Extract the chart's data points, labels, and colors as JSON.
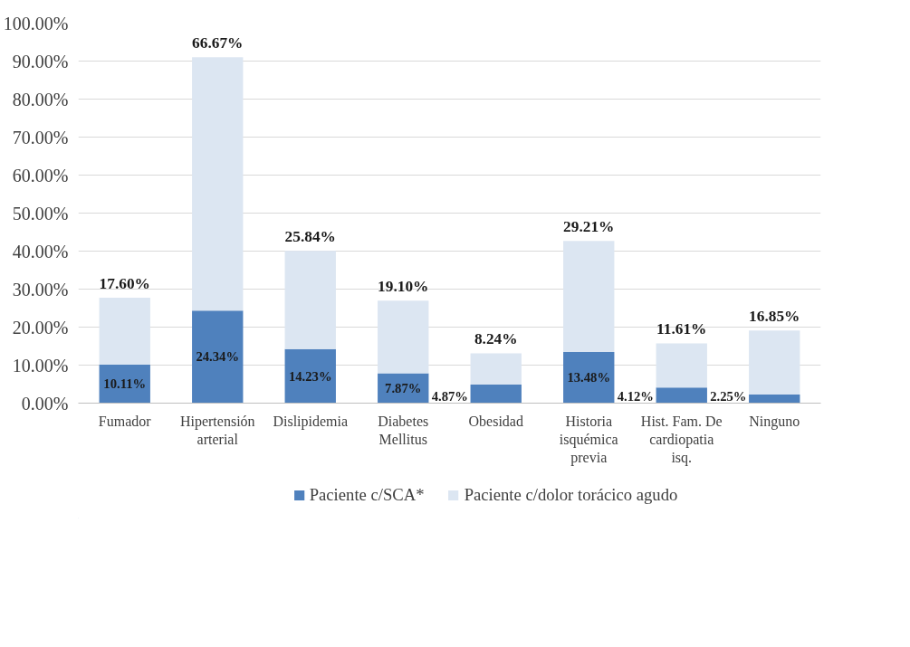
{
  "chart_data": {
    "type": "bar",
    "stacked": true,
    "categories": [
      "Fumador",
      "Hipertensión arterial",
      "Dislipidemia",
      "Diabetes Mellitus",
      "Obesidad",
      "Historia isquémica previa",
      "Hist. Fam. De cardiopatia isq.",
      "Ninguno"
    ],
    "series": [
      {
        "name": "Paciente c/SCA*",
        "color": "#4f81bd",
        "values": [
          10.11,
          24.34,
          14.23,
          7.87,
          4.87,
          13.48,
          4.12,
          2.25
        ]
      },
      {
        "name": "Paciente c/dolor torácico agudo",
        "color": "#dce6f2",
        "values": [
          17.6,
          66.67,
          25.84,
          19.1,
          8.24,
          29.21,
          11.61,
          16.85
        ]
      }
    ],
    "ylim": [
      0,
      100
    ],
    "yticks": [
      {
        "value": 0,
        "label": "0.00%"
      },
      {
        "value": 10,
        "label": "10.00%"
      },
      {
        "value": 20,
        "label": "20.00%"
      },
      {
        "value": 30,
        "label": "30.00%"
      },
      {
        "value": 40,
        "label": "40.00%"
      },
      {
        "value": 50,
        "label": "50.00%"
      },
      {
        "value": 60,
        "label": "60.00%"
      },
      {
        "value": 70,
        "label": "70.00%"
      },
      {
        "value": 80,
        "label": "80.00%"
      },
      {
        "value": 90,
        "label": "90.00%"
      },
      {
        "value": 100,
        "label": "100.00%"
      }
    ],
    "grid": "y",
    "legend": "bottom",
    "value_labels": [
      [
        "10.11%",
        "24.34%",
        "14.23%",
        "7.87%",
        "4.87%",
        "13.48%",
        "4.12%",
        "2.25%"
      ],
      [
        "17.60%",
        "66.67%",
        "25.84%",
        "19.10%",
        "8.24%",
        "29.21%",
        "11.61%",
        "16.85%"
      ]
    ]
  }
}
